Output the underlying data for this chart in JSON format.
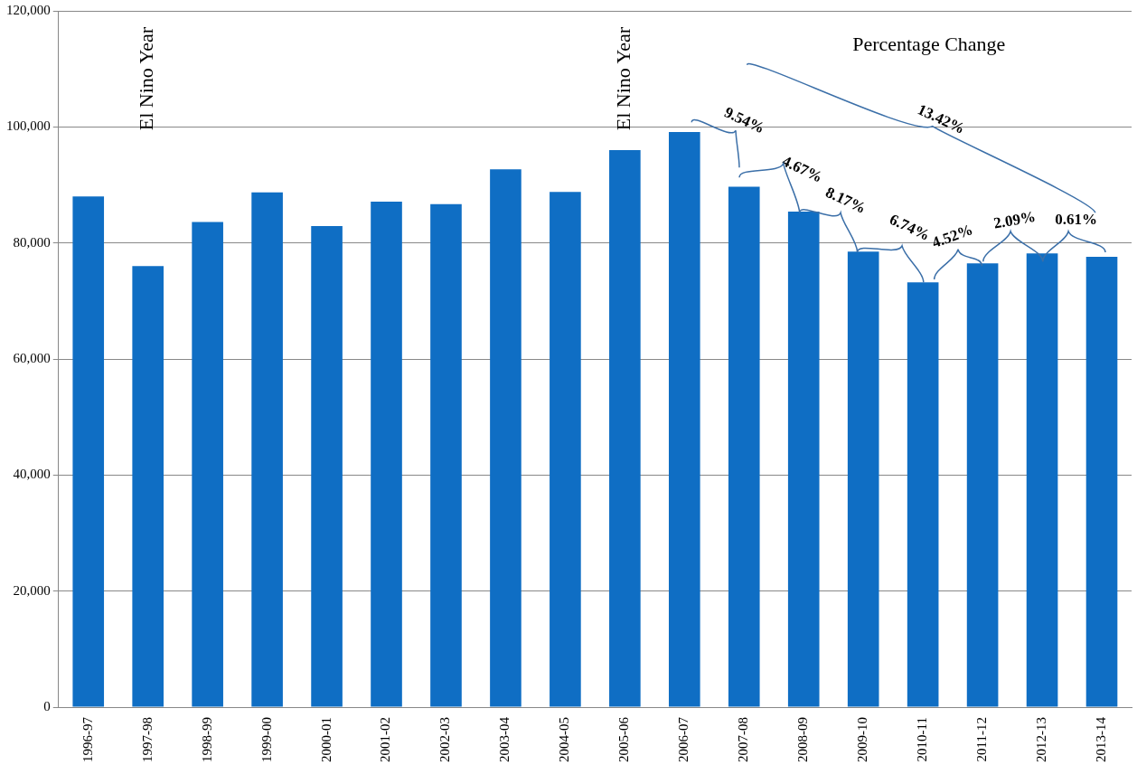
{
  "chart_data": {
    "type": "bar",
    "categories": [
      "1996-97",
      "1997-98",
      "1998-99",
      "1999-00",
      "2000-01",
      "2001-02",
      "2002-03",
      "2003-04",
      "2004-05",
      "2005-06",
      "2006-07",
      "2007-08",
      "2008-09",
      "2009-10",
      "2010-11",
      "2011-12",
      "2012-13",
      "2013-14"
    ],
    "values": [
      88000,
      76000,
      83600,
      88700,
      82900,
      87100,
      86700,
      92700,
      88800,
      96000,
      99100,
      89700,
      85400,
      78500,
      73200,
      76500,
      78200,
      77600
    ],
    "color": "#0f6ec4",
    "ylim": [
      0,
      120000
    ],
    "yticks": [
      {
        "value": 0,
        "label": "0"
      },
      {
        "value": 20000,
        "label": "20,000"
      },
      {
        "value": 40000,
        "label": "40,000"
      },
      {
        "value": 60000,
        "label": "60,000"
      },
      {
        "value": 80000,
        "label": "80,000"
      },
      {
        "value": 100000,
        "label": "100,000"
      },
      {
        "value": 120000,
        "label": "120,000"
      }
    ],
    "grid": "y",
    "legend": false,
    "annotations": [
      "El Nino Year",
      "El Nino Year",
      "Percentage Change",
      "9.54%",
      {
        "text": "4.67%",
        "x": "2008-09",
        "y": 85400
      },
      {
        "text": "8.17%",
        "x": "2009-10",
        "y": 78500
      },
      {
        "text": "6.74%",
        "x": "2010-11",
        "y": 73200
      },
      {
        "text": "4.52%",
        "x": "2011-12",
        "y": 76500
      },
      {
        "text": "2.09%",
        "x": "2012-13",
        "y": 78200
      },
      {
        "text": "0.61%",
        "x": "2013-14",
        "y": 77600
      },
      "13.42%"
    ]
  }
}
